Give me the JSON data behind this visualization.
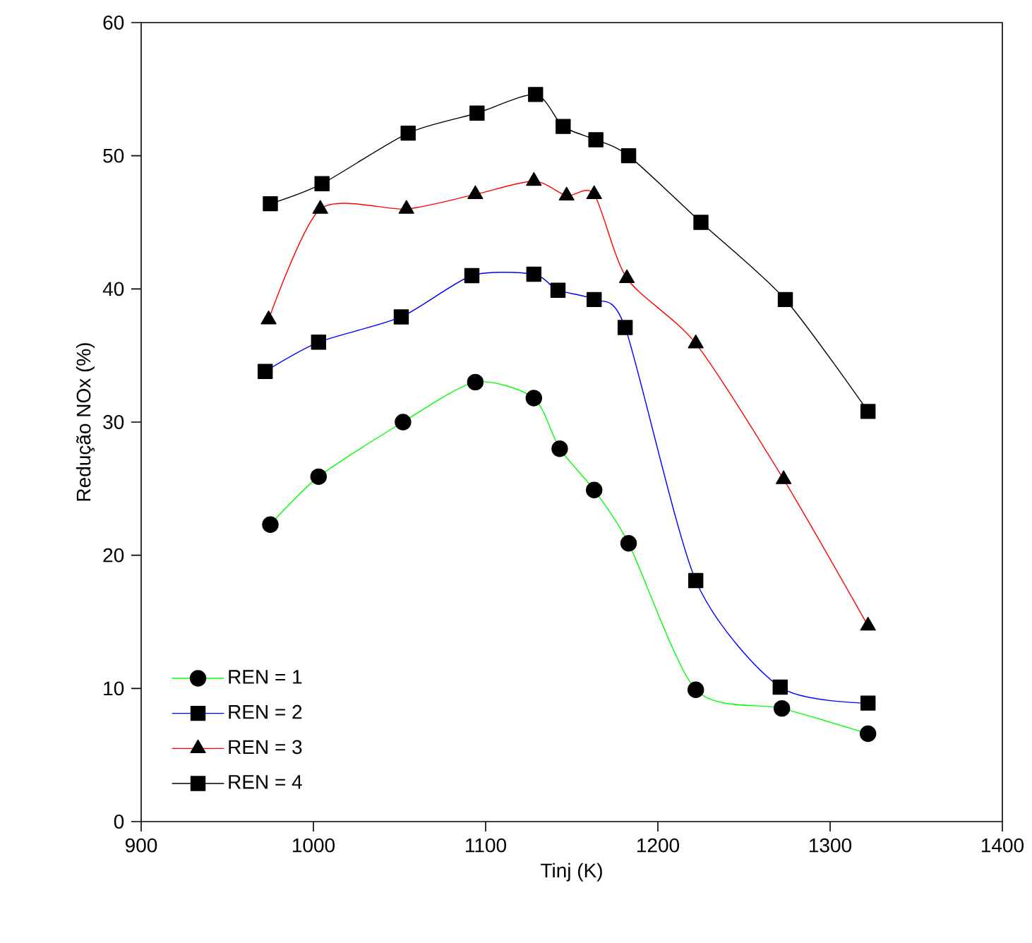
{
  "chart_data": {
    "type": "line",
    "xlabel": "Tinj (K)",
    "ylabel": "Redução NOx (%)",
    "xlim": [
      900,
      1400
    ],
    "ylim": [
      0,
      60
    ],
    "xticks": [
      900,
      1000,
      1100,
      1200,
      1300,
      1400
    ],
    "yticks": [
      0,
      10,
      20,
      30,
      40,
      50,
      60
    ],
    "grid": false,
    "legend": "bottom left",
    "line_style": "solid",
    "series": [
      {
        "name": "REN = 1",
        "color": "#00ff00",
        "marker": "circle",
        "x": [
          975,
          1003,
          1052,
          1094,
          1128,
          1143,
          1163,
          1183,
          1222,
          1272,
          1322
        ],
        "values": [
          22.3,
          25.9,
          30.0,
          33.0,
          31.8,
          28.0,
          24.9,
          20.9,
          9.9,
          8.5,
          6.6
        ]
      },
      {
        "name": "REN = 2",
        "color": "#0000ff",
        "marker": "square",
        "x": [
          972,
          1003,
          1051,
          1092,
          1128,
          1142,
          1163,
          1181,
          1222,
          1271,
          1322
        ],
        "values": [
          33.8,
          36.0,
          37.9,
          41.0,
          41.1,
          39.9,
          39.2,
          37.1,
          18.1,
          10.1,
          8.9
        ]
      },
      {
        "name": "REN = 3",
        "color": "#ff0000",
        "marker": "triangle",
        "x": [
          974,
          1004,
          1054,
          1094,
          1128,
          1147,
          1163,
          1182,
          1222,
          1273,
          1322
        ],
        "values": [
          37.7,
          46.0,
          46.0,
          47.1,
          48.1,
          47.0,
          47.1,
          40.8,
          35.9,
          25.7,
          14.7
        ]
      },
      {
        "name": "REN = 4",
        "color": "#000000",
        "marker": "square",
        "x": [
          975,
          1005,
          1055,
          1095,
          1129,
          1145,
          1164,
          1183,
          1225,
          1274,
          1322
        ],
        "values": [
          46.4,
          47.9,
          51.7,
          53.2,
          54.6,
          52.2,
          51.2,
          50.0,
          45.0,
          39.2,
          30.8
        ]
      }
    ]
  }
}
